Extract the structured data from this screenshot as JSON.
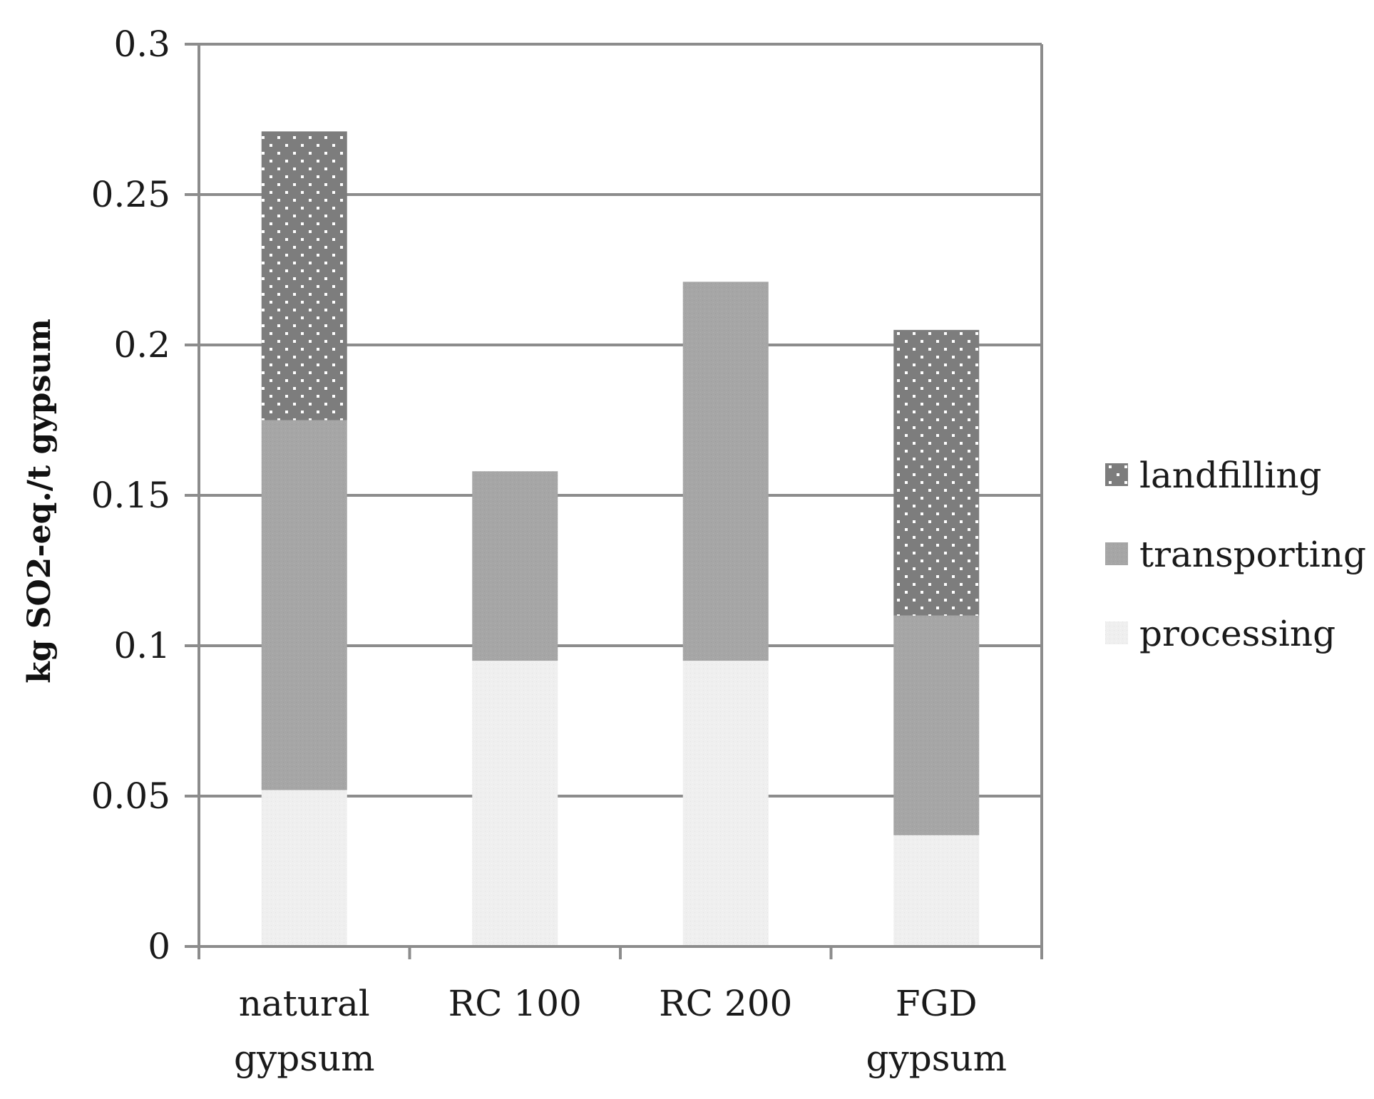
{
  "chart_data": {
    "type": "bar",
    "stacked": true,
    "title": "",
    "xlabel": "",
    "ylabel": "kg SO2-eq./t gypsum",
    "ylim": [
      0,
      0.3
    ],
    "yticks": [
      0,
      0.05,
      0.1,
      0.15,
      0.2,
      0.25,
      0.3
    ],
    "ytick_labels": [
      "0",
      "0.05",
      "0.1",
      "0.15",
      "0.2",
      "0.25",
      "0.3"
    ],
    "categories": [
      {
        "line1": "natural",
        "line2": "gypsum"
      },
      {
        "line1": "RC 100",
        "line2": ""
      },
      {
        "line1": "RC 200",
        "line2": ""
      },
      {
        "line1": "FGD",
        "line2": "gypsum"
      }
    ],
    "series": [
      {
        "name": "processing",
        "color": "#efefef",
        "values": [
          0.052,
          0.095,
          0.095,
          0.037
        ]
      },
      {
        "name": "transporting",
        "color": "#a6a6a6",
        "values": [
          0.123,
          0.063,
          0.126,
          0.073
        ]
      },
      {
        "name": "landfilling",
        "color": "#7d7d7d",
        "values": [
          0.096,
          0.0,
          0.0,
          0.095
        ]
      }
    ],
    "legend": {
      "placement": "right",
      "order": [
        "landfilling",
        "transporting",
        "processing"
      ]
    },
    "grid": true
  }
}
